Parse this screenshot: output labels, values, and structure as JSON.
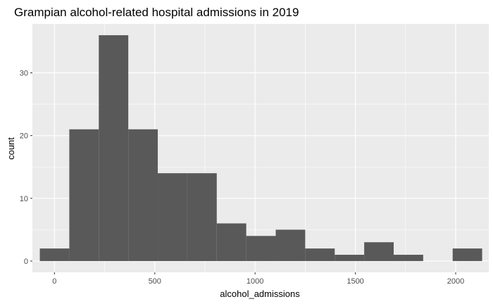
{
  "chart_data": {
    "type": "bar",
    "title": "Grampian alcohol-related hospital admissions in 2019",
    "xlabel": "alcohol_admissions",
    "ylabel": "count",
    "xlim": [
      -110,
      2165
    ],
    "ylim": [
      -1.8,
      37.8
    ],
    "xticks": [
      0,
      500,
      1000,
      1500,
      2000
    ],
    "xtick_labels": [
      "0",
      "500",
      "1000",
      "1500",
      "2000"
    ],
    "yticks": [
      0,
      10,
      20,
      30
    ],
    "ytick_labels": [
      "0",
      "10",
      "20",
      "30"
    ],
    "grid": true,
    "bin_edges": [
      -73,
      74,
      221,
      368,
      515,
      662,
      809,
      956,
      1103,
      1250,
      1397,
      1544,
      1691,
      1838,
      1985,
      2132
    ],
    "counts": [
      2,
      21,
      36,
      21,
      14,
      14,
      6,
      4,
      5,
      2,
      1,
      3,
      1,
      0,
      2
    ],
    "bar_color": "#595959",
    "panel_color": "#ebebeb",
    "grid_color": "#ffffff"
  }
}
